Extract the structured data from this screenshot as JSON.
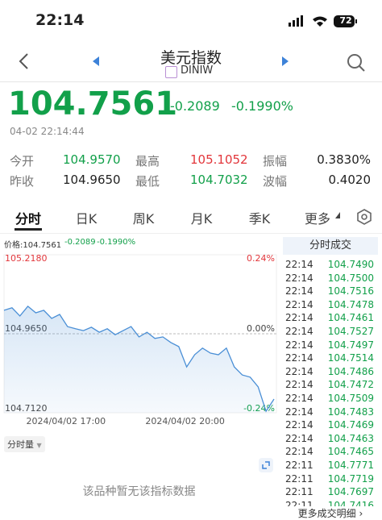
{
  "status_bar": {
    "time": "22:14",
    "battery": "72"
  },
  "header": {
    "title": "美元指数",
    "code": "DINIW"
  },
  "quote": {
    "price": "104.7561",
    "change": "-0.2089",
    "change_pct": "-0.1990%",
    "datetime": "04-02 22:14:44"
  },
  "stats": [
    {
      "label": "今开",
      "value": "104.9570"
    },
    {
      "label": "最高",
      "value": "105.1052"
    },
    {
      "label": "振幅",
      "value": "0.3830%"
    },
    {
      "label": "昨收",
      "value": "104.9650"
    },
    {
      "label": "最低",
      "value": "104.7032"
    },
    {
      "label": "波幅",
      "value": "0.4020"
    }
  ],
  "tabs": [
    "分时",
    "日K",
    "周K",
    "月K",
    "季K",
    "更多"
  ],
  "chart_info": {
    "price": "价格:104.7561",
    "change": "-0.2089",
    "change_pct": "-0.1990%"
  },
  "chart_data": {
    "type": "line",
    "color": "#4a8fd6",
    "values": [
      105.04,
      105.048,
      105.022,
      105.053,
      105.032,
      105.04,
      105.014,
      105.027,
      104.988,
      104.981,
      104.975,
      104.986,
      104.97,
      104.981,
      104.962,
      104.975,
      104.988,
      104.955,
      104.97,
      104.95,
      104.955,
      104.937,
      104.924,
      104.859,
      104.898,
      104.919,
      104.903,
      104.898,
      104.919,
      104.859,
      104.833,
      104.826,
      104.795,
      104.717,
      104.756
    ],
    "xlim": [
      0,
      34
    ],
    "xticks": [
      {
        "value": 7.8,
        "label": "2024/04/02 17:00"
      },
      {
        "value": 22.8,
        "label": "2024/04/02 20:00"
      }
    ],
    "ylim": [
      104.712,
      105.218
    ],
    "yticks": [
      {
        "value": 105.218,
        "label": "105.2180"
      },
      {
        "value": 104.965,
        "label": "104.9650"
      },
      {
        "value": 104.712,
        "label": "104.7120"
      }
    ],
    "y2lim": [
      -0.24,
      0.24
    ],
    "y2ticks": [
      {
        "value": 0.24,
        "label": "0.24%"
      },
      {
        "value": 0,
        "label": "0.00%"
      },
      {
        "value": -0.24,
        "label": "-0.24%"
      }
    ]
  },
  "volume": {
    "selector": "分时量",
    "empty": "该品种暂无该指标数据"
  },
  "trades": {
    "title": "分时成交",
    "rows": [
      [
        "22:14",
        "104.7490"
      ],
      [
        "22:14",
        "104.7500"
      ],
      [
        "22:14",
        "104.7516"
      ],
      [
        "22:14",
        "104.7478"
      ],
      [
        "22:14",
        "104.7461"
      ],
      [
        "22:14",
        "104.7527"
      ],
      [
        "22:14",
        "104.7497"
      ],
      [
        "22:14",
        "104.7514"
      ],
      [
        "22:14",
        "104.7486"
      ],
      [
        "22:14",
        "104.7472"
      ],
      [
        "22:14",
        "104.7509"
      ],
      [
        "22:14",
        "104.7483"
      ],
      [
        "22:14",
        "104.7469"
      ],
      [
        "22:14",
        "104.7463"
      ],
      [
        "22:14",
        "104.7465"
      ],
      [
        "22:11",
        "104.7771"
      ],
      [
        "22:11",
        "104.7719"
      ],
      [
        "22:11",
        "104.7697"
      ],
      [
        "22:11",
        "104.7416"
      ]
    ],
    "more": "更多成交明细"
  }
}
